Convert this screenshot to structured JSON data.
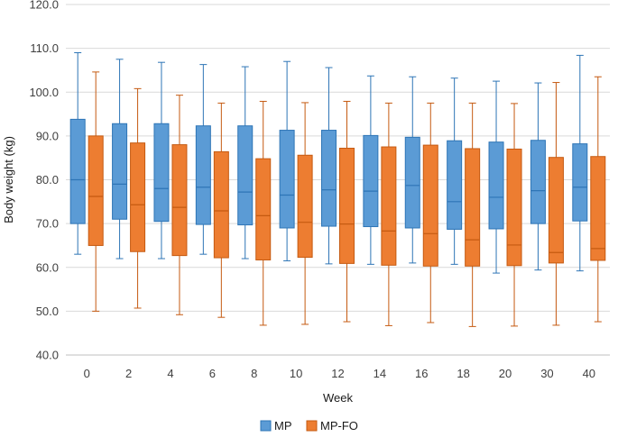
{
  "chart_data": {
    "type": "boxplot",
    "title": "",
    "xlabel": "Week",
    "ylabel": "Body weight (kg)",
    "ylim": [
      40,
      120
    ],
    "yticks": [
      "40.0",
      "50.0",
      "60.0",
      "70.0",
      "80.0",
      "90.0",
      "100.0",
      "110.0",
      "120.0"
    ],
    "categories": [
      "0",
      "2",
      "4",
      "6",
      "8",
      "10",
      "12",
      "14",
      "16",
      "18",
      "20",
      "30",
      "40"
    ],
    "grid": true,
    "legend_position": "bottom",
    "series": [
      {
        "name": "MP",
        "color": "#5b9bd5",
        "edge_color": "#2e75b6",
        "boxes": [
          {
            "min": 63.0,
            "q1": 70.0,
            "median": 80.0,
            "q3": 93.8,
            "max": 109.0
          },
          {
            "min": 62.0,
            "q1": 71.0,
            "median": 79.0,
            "q3": 92.8,
            "max": 107.5
          },
          {
            "min": 62.0,
            "q1": 70.5,
            "median": 78.0,
            "q3": 92.8,
            "max": 106.8
          },
          {
            "min": 63.0,
            "q1": 69.8,
            "median": 78.3,
            "q3": 92.3,
            "max": 106.3
          },
          {
            "min": 62.0,
            "q1": 69.7,
            "median": 77.2,
            "q3": 92.3,
            "max": 105.8
          },
          {
            "min": 61.5,
            "q1": 69.0,
            "median": 76.5,
            "q3": 91.3,
            "max": 107.0
          },
          {
            "min": 60.8,
            "q1": 69.4,
            "median": 77.7,
            "q3": 91.3,
            "max": 105.6
          },
          {
            "min": 60.7,
            "q1": 69.3,
            "median": 77.4,
            "q3": 90.1,
            "max": 103.7
          },
          {
            "min": 61.0,
            "q1": 69.0,
            "median": 78.7,
            "q3": 89.7,
            "max": 103.5
          },
          {
            "min": 60.7,
            "q1": 68.7,
            "median": 75.0,
            "q3": 88.9,
            "max": 103.2
          },
          {
            "min": 58.7,
            "q1": 68.8,
            "median": 76.0,
            "q3": 88.6,
            "max": 102.5
          },
          {
            "min": 59.4,
            "q1": 70.0,
            "median": 77.5,
            "q3": 89.0,
            "max": 102.1
          },
          {
            "min": 59.2,
            "q1": 70.6,
            "median": 78.3,
            "q3": 88.2,
            "max": 108.4
          }
        ]
      },
      {
        "name": "MP-FO",
        "color": "#ed7d31",
        "edge_color": "#c55a11",
        "boxes": [
          {
            "min": 50.0,
            "q1": 65.0,
            "median": 76.2,
            "q3": 90.0,
            "max": 104.6
          },
          {
            "min": 50.7,
            "q1": 63.6,
            "median": 74.3,
            "q3": 88.4,
            "max": 100.8
          },
          {
            "min": 49.2,
            "q1": 62.7,
            "median": 73.7,
            "q3": 88.0,
            "max": 99.3
          },
          {
            "min": 48.6,
            "q1": 62.2,
            "median": 72.9,
            "q3": 86.4,
            "max": 97.5
          },
          {
            "min": 46.8,
            "q1": 61.7,
            "median": 71.8,
            "q3": 84.8,
            "max": 97.9
          },
          {
            "min": 47.0,
            "q1": 62.3,
            "median": 70.3,
            "q3": 85.6,
            "max": 97.6
          },
          {
            "min": 47.6,
            "q1": 60.9,
            "median": 69.9,
            "q3": 87.2,
            "max": 97.9
          },
          {
            "min": 46.7,
            "q1": 60.5,
            "median": 68.3,
            "q3": 87.5,
            "max": 97.5
          },
          {
            "min": 47.4,
            "q1": 60.3,
            "median": 67.7,
            "q3": 87.9,
            "max": 97.5
          },
          {
            "min": 46.5,
            "q1": 60.3,
            "median": 66.3,
            "q3": 87.1,
            "max": 97.5
          },
          {
            "min": 46.6,
            "q1": 60.4,
            "median": 65.1,
            "q3": 87.0,
            "max": 97.4
          },
          {
            "min": 46.8,
            "q1": 61.0,
            "median": 63.4,
            "q3": 85.1,
            "max": 102.2
          },
          {
            "min": 47.6,
            "q1": 61.6,
            "median": 64.3,
            "q3": 85.3,
            "max": 103.5
          }
        ]
      }
    ]
  }
}
